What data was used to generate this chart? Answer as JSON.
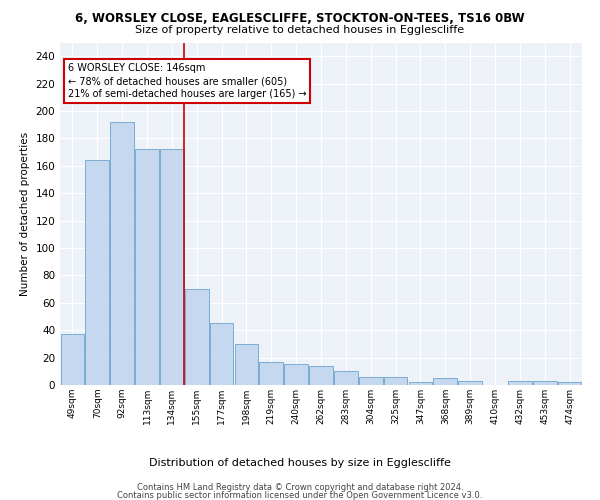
{
  "title1": "6, WORSLEY CLOSE, EAGLESCLIFFE, STOCKTON-ON-TEES, TS16 0BW",
  "title2": "Size of property relative to detached houses in Egglescliffe",
  "xlabel": "Distribution of detached houses by size in Egglescliffe",
  "ylabel": "Number of detached properties",
  "bar_color": "#c5d8f0",
  "bar_edge_color": "#7aadd4",
  "annotation_line1": "6 WORSLEY CLOSE: 146sqm",
  "annotation_line2": "← 78% of detached houses are smaller (605)",
  "annotation_line3": "21% of semi-detached houses are larger (165) →",
  "annotation_box_color": "#ffffff",
  "annotation_box_edge_color": "#cc0000",
  "vline_color": "#cc0000",
  "vline_bar_index": 4,
  "categories": [
    "49sqm",
    "70sqm",
    "92sqm",
    "113sqm",
    "134sqm",
    "155sqm",
    "177sqm",
    "198sqm",
    "219sqm",
    "240sqm",
    "262sqm",
    "283sqm",
    "304sqm",
    "325sqm",
    "347sqm",
    "368sqm",
    "389sqm",
    "410sqm",
    "432sqm",
    "453sqm",
    "474sqm"
  ],
  "values": [
    37,
    164,
    192,
    172,
    172,
    70,
    45,
    30,
    17,
    15,
    14,
    10,
    6,
    6,
    2,
    5,
    3,
    0,
    3,
    3,
    2
  ],
  "ylim": [
    0,
    250
  ],
  "yticks": [
    0,
    20,
    40,
    60,
    80,
    100,
    120,
    140,
    160,
    180,
    200,
    220,
    240
  ],
  "footer1": "Contains HM Land Registry data © Crown copyright and database right 2024.",
  "footer2": "Contains public sector information licensed under the Open Government Licence v3.0.",
  "bg_color": "#edf2f9",
  "grid_color": "#ffffff",
  "title1_fontsize": 8.5,
  "title2_fontsize": 8.0,
  "ylabel_fontsize": 7.5,
  "xlabel_fontsize": 8.0,
  "ytick_fontsize": 7.5,
  "xtick_fontsize": 6.5,
  "ann_fontsize": 7.0,
  "footer_fontsize": 6.0
}
